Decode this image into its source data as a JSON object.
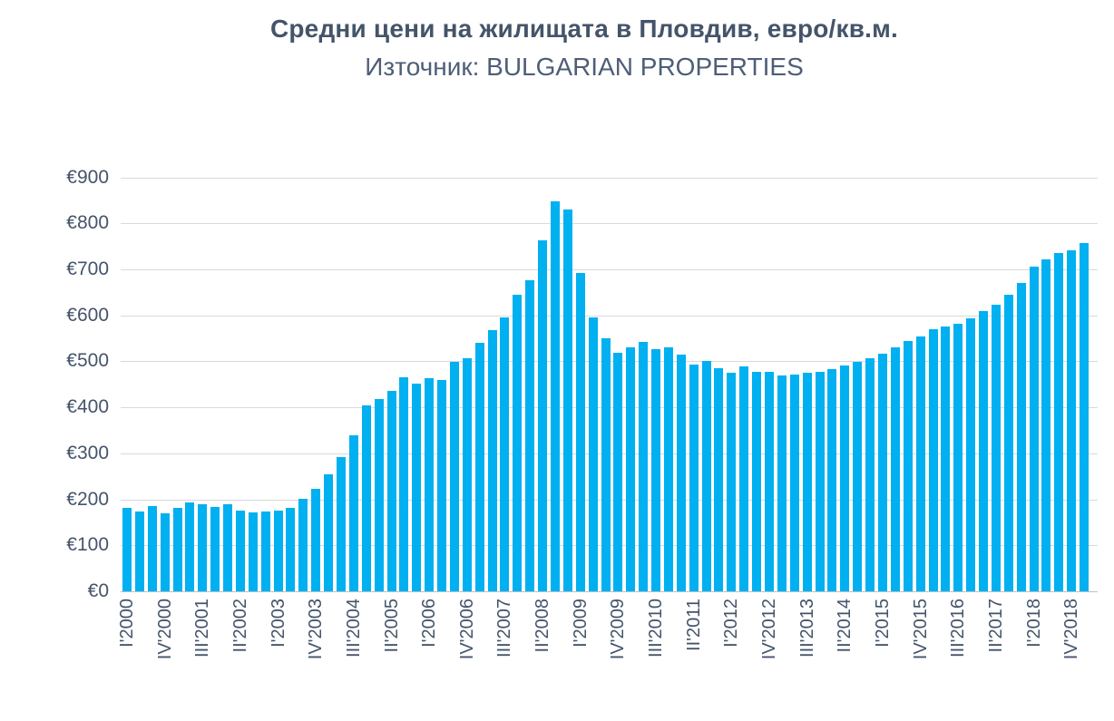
{
  "header": {
    "title": "Средни цени на жилищата в Пловдив, евро/кв.м.",
    "subtitle": "Източник: BULGARIAN PROPERTIES"
  },
  "colors": {
    "bar": "#00B0F0",
    "text": "#44546A",
    "gridline": "#D9D9D9",
    "axis_line": "#BFBFBF"
  },
  "chart_data": {
    "type": "bar",
    "title": "Средни цени на жилищата в Пловдив, евро/кв.м.",
    "subtitle": "Източник: BULGARIAN PROPERTIES",
    "currency_prefix": "€",
    "ylabel": "",
    "xlabel": "",
    "ylim": [
      0,
      900
    ],
    "ytick_step": 100,
    "ytick_labels": [
      "€0",
      "€100",
      "€200",
      "€300",
      "€400",
      "€500",
      "€600",
      "€700",
      "€800",
      "€900"
    ],
    "grid": "horizontal",
    "legend": "none",
    "xtick_shown_every": 3,
    "categories": [
      "I'2000",
      "II'2000",
      "III'2000",
      "IV'2000",
      "I'2001",
      "II'2001",
      "III'2001",
      "IV'2001",
      "I'2002",
      "II'2002",
      "III'2002",
      "IV'2002",
      "I'2003",
      "II'2003",
      "III'2003",
      "IV'2003",
      "I'2004",
      "II'2004",
      "III'2004",
      "IV'2004",
      "I'2005",
      "II'2005",
      "III'2005",
      "IV'2005",
      "I'2006",
      "II'2006",
      "III'2006",
      "IV'2006",
      "I'2007",
      "II'2007",
      "III'2007",
      "IV'2007",
      "I'2008",
      "II'2008",
      "III'2008",
      "IV'2008",
      "I'2009",
      "II'2009",
      "III'2009",
      "IV'2009",
      "I'2010",
      "II'2010",
      "III'2010",
      "IV'2010",
      "I'2011",
      "II'2011",
      "III'2011",
      "IV'2011",
      "I'2012",
      "II'2012",
      "III'2012",
      "IV'2012",
      "I'2013",
      "II'2013",
      "III'2013",
      "IV'2013",
      "I'2014",
      "II'2014",
      "III'2014",
      "IV'2014",
      "I'2015",
      "II'2015",
      "III'2015",
      "IV'2015",
      "I'2016",
      "II'2016",
      "III'2016",
      "IV'2016",
      "I'2017",
      "II'2017",
      "III'2017",
      "IV'2017",
      "I'2018",
      "II'2018",
      "III'2018",
      "IV'2018",
      "I'2019"
    ],
    "values": [
      182,
      173,
      185,
      169,
      181,
      193,
      190,
      184,
      189,
      175,
      171,
      173,
      175,
      181,
      201,
      222,
      255,
      291,
      340,
      404,
      419,
      436,
      465,
      452,
      464,
      460,
      499,
      507,
      540,
      568,
      596,
      645,
      676,
      763,
      847,
      830,
      692,
      596,
      551,
      518,
      530,
      543,
      527,
      531,
      514,
      492,
      501,
      486,
      476,
      489,
      478,
      478,
      470,
      472,
      476,
      478,
      484,
      491,
      499,
      507,
      517,
      530,
      545,
      554,
      570,
      576,
      581,
      593,
      610,
      624,
      644,
      670,
      705,
      722,
      735,
      742,
      758
    ]
  }
}
